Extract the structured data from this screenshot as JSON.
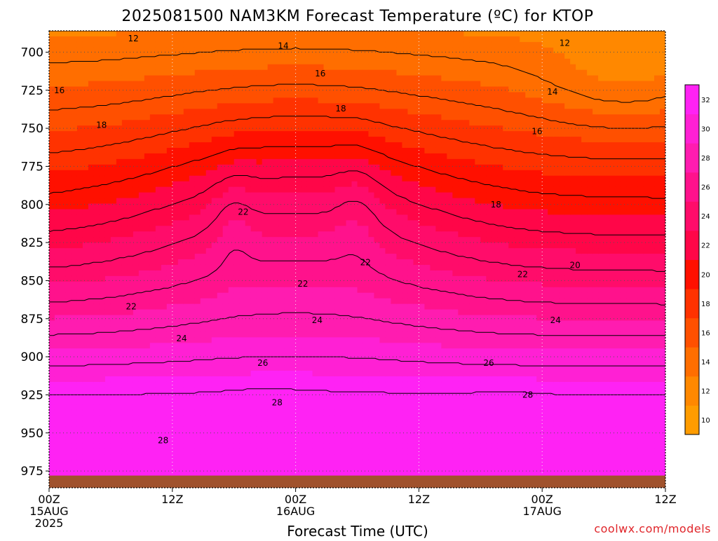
{
  "chart_data": {
    "type": "contour",
    "title": "2025081500 NAM3KM Forecast Temperature (ºC) for KTOP",
    "xlabel": "Forecast Time (UTC)",
    "ylabel": "",
    "x_range_hours": [
      0,
      36
    ],
    "y_range_hpa": [
      686,
      986
    ],
    "y_scale": "inverted (pressure)",
    "y_ticks": [
      700,
      725,
      750,
      775,
      800,
      825,
      850,
      875,
      900,
      925,
      950,
      975
    ],
    "x_ticks": [
      {
        "hour": 0,
        "lines": [
          "00Z",
          "15AUG",
          "2025"
        ]
      },
      {
        "hour": 12,
        "lines": [
          "12Z"
        ]
      },
      {
        "hour": 24,
        "lines": [
          "00Z",
          "16AUG"
        ]
      },
      {
        "hour": 36,
        "lines": [
          "12Z"
        ]
      },
      {
        "hour": 48,
        "lines": [
          "00Z",
          "17AUG"
        ]
      },
      {
        "hour": 60,
        "lines": [
          "12Z"
        ]
      }
    ],
    "grid": "dotted",
    "colorbar": {
      "position": "right",
      "levels": [
        10,
        12,
        14,
        16,
        18,
        20,
        22,
        24,
        26,
        28,
        30,
        32
      ],
      "colors": [
        "#ff9c00",
        "#ff8800",
        "#ff6e00",
        "#ff5000",
        "#ff3200",
        "#ff1000",
        "#ff0648",
        "#ff0c6a",
        "#ff128c",
        "#ff1cb0",
        "#ff20d4",
        "#ff22f4"
      ]
    },
    "contour_labels": [
      {
        "value": 12,
        "hour": 8.2,
        "p": 691
      },
      {
        "value": 14,
        "hour": 22.8,
        "p": 696
      },
      {
        "value": 12,
        "hour": 50.2,
        "p": 694
      },
      {
        "value": 16,
        "hour": 1.0,
        "p": 725
      },
      {
        "value": 16,
        "hour": 26.4,
        "p": 714
      },
      {
        "value": 14,
        "hour": 49.0,
        "p": 726
      },
      {
        "value": 18,
        "hour": 5.1,
        "p": 748
      },
      {
        "value": 18,
        "hour": 28.4,
        "p": 737
      },
      {
        "value": 16,
        "hour": 47.5,
        "p": 752
      },
      {
        "value": 22,
        "hour": 18.9,
        "p": 805
      },
      {
        "value": 18,
        "hour": 43.5,
        "p": 800
      },
      {
        "value": 22,
        "hour": 30.8,
        "p": 838
      },
      {
        "value": 20,
        "hour": 51.2,
        "p": 840
      },
      {
        "value": 22,
        "hour": 24.7,
        "p": 852
      },
      {
        "value": 22,
        "hour": 46.1,
        "p": 846
      },
      {
        "value": 22,
        "hour": 8.0,
        "p": 867
      },
      {
        "value": 24,
        "hour": 12.9,
        "p": 888
      },
      {
        "value": 24,
        "hour": 26.1,
        "p": 876
      },
      {
        "value": 24,
        "hour": 49.3,
        "p": 876
      },
      {
        "value": 26,
        "hour": 20.8,
        "p": 904
      },
      {
        "value": 26,
        "hour": 42.8,
        "p": 904
      },
      {
        "value": 28,
        "hour": 22.2,
        "p": 930
      },
      {
        "value": 28,
        "hour": 46.6,
        "p": 925
      },
      {
        "value": 28,
        "hour": 11.1,
        "p": 955
      }
    ],
    "surface_color": "#a0522d"
  },
  "credit": "coolwx.com/models",
  "colors": {
    "surface": "#a0522d",
    "credit": "#e0252a"
  }
}
